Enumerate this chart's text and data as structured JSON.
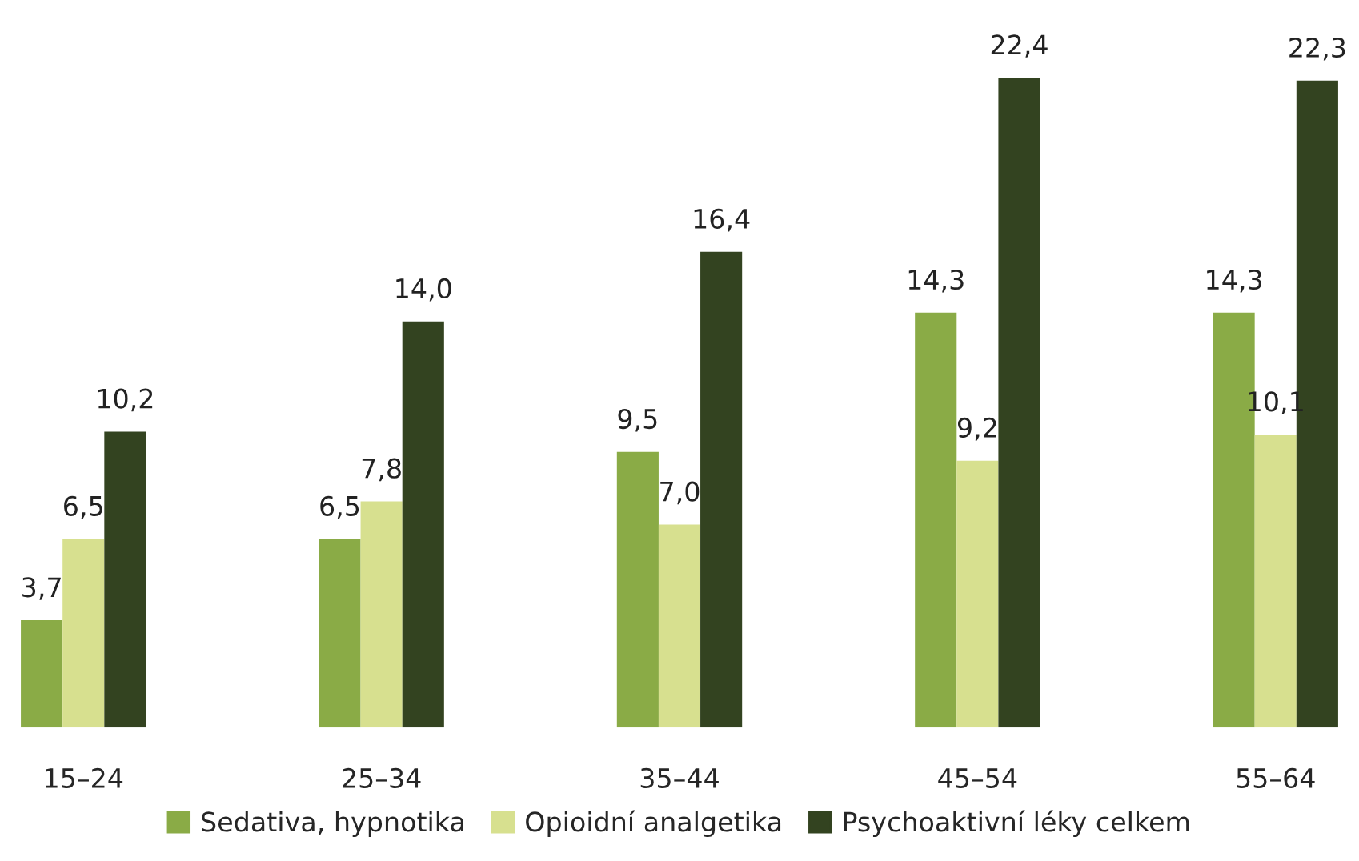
{
  "chart_data": {
    "type": "bar",
    "categories": [
      "15–24",
      "25–34",
      "35–44",
      "45–54",
      "55–64"
    ],
    "series": [
      {
        "name": "Sedativa, hypnotika",
        "color": "#8aab46",
        "values": [
          3.7,
          6.5,
          9.5,
          14.3,
          14.3
        ],
        "value_labels": [
          "3,7",
          "6,5",
          "9,5",
          "14,3",
          "14,3"
        ]
      },
      {
        "name": "Opioidní analgetika",
        "color": "#d7e08f",
        "values": [
          6.5,
          7.8,
          7.0,
          9.2,
          10.1
        ],
        "value_labels": [
          "6,5",
          "7,8",
          "7,0",
          "9,2",
          "10,1"
        ]
      },
      {
        "name": "Psychoaktivní léky celkem",
        "color": "#334320",
        "values": [
          10.2,
          14.0,
          16.4,
          22.4,
          22.3
        ],
        "value_labels": [
          "10,2",
          "14,0",
          "16,4",
          "22,4",
          "22,3"
        ]
      }
    ],
    "legend": "bottom",
    "grid": false
  }
}
